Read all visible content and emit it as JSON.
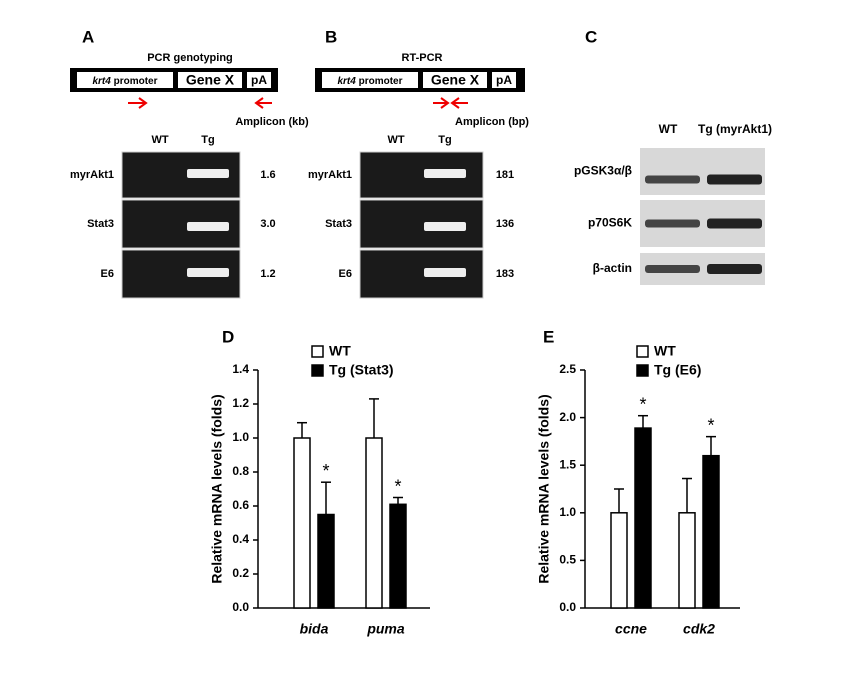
{
  "panel_a": {
    "label": "A",
    "title": "PCR genotyping",
    "promoter_gene": "krt4",
    "promoter_word": "promoter",
    "gene": "Gene X",
    "polya": "pA",
    "amplicon_label": "Amplicon (kb)",
    "lanes": [
      "WT",
      "Tg"
    ],
    "rows": [
      {
        "name": "myrAkt1",
        "size": "1.6"
      },
      {
        "name": "Stat3",
        "size": "3.0"
      },
      {
        "name": "E6",
        "size": "1.2"
      }
    ]
  },
  "panel_b": {
    "label": "B",
    "title": "RT-PCR",
    "promoter_gene": "krt4",
    "promoter_word": "promoter",
    "gene": "Gene X",
    "polya": "pA",
    "amplicon_label": "Amplicon (bp)",
    "lanes": [
      "WT",
      "Tg"
    ],
    "rows": [
      {
        "name": "myrAkt1",
        "size": "181"
      },
      {
        "name": "Stat3",
        "size": "136"
      },
      {
        "name": "E6",
        "size": "183"
      }
    ]
  },
  "panel_c": {
    "label": "C",
    "lanes": [
      "WT",
      "Tg (myrAkt1)"
    ],
    "rows": [
      "pGSK3α/β",
      "p70S6K",
      "β-actin"
    ]
  },
  "chart_data": [
    {
      "type": "bar",
      "panel_label": "D",
      "y_label": "Relative mRNA levels (folds)",
      "categories": [
        "bida",
        "puma"
      ],
      "series": [
        {
          "name": "WT",
          "color": "#ffffff",
          "values": [
            1.0,
            1.0
          ],
          "errors": [
            0.09,
            0.23
          ]
        },
        {
          "name": "Tg (Stat3)",
          "color": "#000000",
          "values": [
            0.55,
            0.61
          ],
          "errors": [
            0.19,
            0.04
          ],
          "markers": [
            "*",
            "*"
          ]
        }
      ],
      "ylim": [
        0,
        1.4
      ],
      "yticks": [
        {
          "value": 0,
          "label": "0.0"
        },
        {
          "value": 0.2,
          "label": "0.2"
        },
        {
          "value": 0.4,
          "label": "0.4"
        },
        {
          "value": 0.6,
          "label": "0.6"
        },
        {
          "value": 0.8,
          "label": "0.8"
        },
        {
          "value": 1,
          "label": "1.0"
        },
        {
          "value": 1.2,
          "label": "1.2"
        },
        {
          "value": 1.4,
          "label": "1.4"
        }
      ]
    },
    {
      "type": "bar",
      "panel_label": "E",
      "y_label": "Relative mRNA levels (folds)",
      "categories": [
        "ccne",
        "cdk2"
      ],
      "series": [
        {
          "name": "WT",
          "color": "#ffffff",
          "values": [
            1.0,
            1.0
          ],
          "errors": [
            0.25,
            0.36
          ]
        },
        {
          "name": "Tg (E6)",
          "color": "#000000",
          "values": [
            1.89,
            1.6
          ],
          "errors": [
            0.13,
            0.2
          ],
          "markers": [
            "*",
            "*"
          ]
        }
      ],
      "ylim": [
        0,
        2.5
      ],
      "yticks": [
        {
          "value": 0,
          "label": "0.0"
        },
        {
          "value": 0.5,
          "label": "0.5"
        },
        {
          "value": 1,
          "label": "1.0"
        },
        {
          "value": 1.5,
          "label": "1.5"
        },
        {
          "value": 2,
          "label": "2.0"
        },
        {
          "value": 2.5,
          "label": "2.5"
        }
      ]
    }
  ]
}
